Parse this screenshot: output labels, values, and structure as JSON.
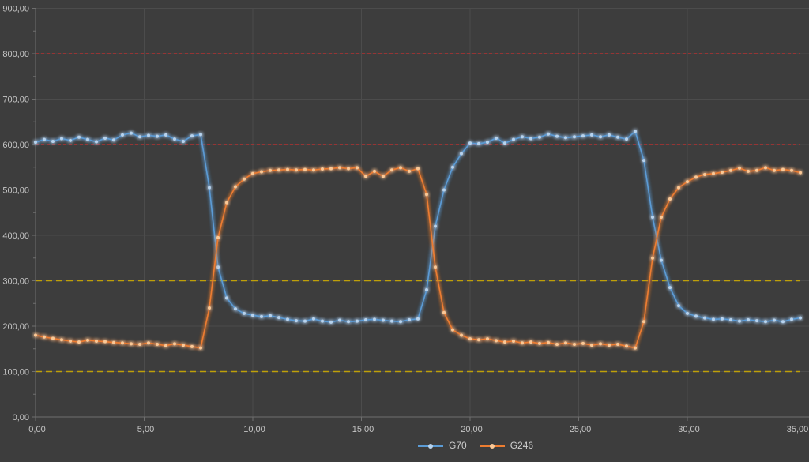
{
  "chart_data": {
    "type": "line",
    "title": "",
    "background_color": "#3d3d3d",
    "grid_color": "#4c4c4c",
    "axis_color": "#6e6e6e",
    "text_color": "#c6c6c6",
    "grid": true,
    "legend_position": "bottom-center",
    "number_format": "comma-decimal",
    "x_axis": {
      "min": 0,
      "max": 35.6,
      "ticks": [
        {
          "value": 0,
          "label": "0,00"
        },
        {
          "value": 5,
          "label": "5,00"
        },
        {
          "value": 10,
          "label": "10,00"
        },
        {
          "value": 15,
          "label": "15,00"
        },
        {
          "value": 20,
          "label": "20,00"
        },
        {
          "value": 25,
          "label": "25,00"
        },
        {
          "value": 30,
          "label": "30,00"
        },
        {
          "value": 35,
          "label": "35,00"
        }
      ]
    },
    "y_axis": {
      "min": 0,
      "max": 900,
      "minor_tick_step": 50,
      "ticks": [
        {
          "value": 0,
          "label": "0,00"
        },
        {
          "value": 100,
          "label": "100,00"
        },
        {
          "value": 200,
          "label": "200,00"
        },
        {
          "value": 300,
          "label": "300,00"
        },
        {
          "value": 400,
          "label": "400,00"
        },
        {
          "value": 500,
          "label": "500,00"
        },
        {
          "value": 600,
          "label": "600,00"
        },
        {
          "value": 700,
          "label": "700,00"
        },
        {
          "value": 800,
          "label": "800,00"
        },
        {
          "value": 900,
          "label": "900,00"
        }
      ]
    },
    "reference_lines": [
      {
        "y": 800,
        "color": "#cc2f2f",
        "dash": "4 3",
        "width": 1.3
      },
      {
        "y": 600,
        "color": "#cc2f2f",
        "dash": "4 3",
        "width": 1.3
      },
      {
        "y": 300,
        "color": "#bfa009",
        "dash": "8 5",
        "width": 1.5
      },
      {
        "y": 100,
        "color": "#bfa009",
        "dash": "8 5",
        "width": 1.5
      }
    ],
    "x_start": 0,
    "x_step": 0.4,
    "series": [
      {
        "name": "G70",
        "color": "#5b9bd5",
        "marker_color": "#b7d3ee",
        "values": [
          605,
          611,
          607,
          613,
          609,
          616,
          611,
          606,
          614,
          610,
          621,
          625,
          617,
          620,
          618,
          621,
          612,
          607,
          619,
          622,
          505,
          330,
          262,
          238,
          228,
          224,
          221,
          223,
          219,
          215,
          212,
          211,
          216,
          211,
          209,
          213,
          210,
          211,
          214,
          215,
          213,
          211,
          210,
          214,
          216,
          280,
          420,
          500,
          550,
          580,
          603,
          602,
          605,
          614,
          603,
          611,
          617,
          613,
          616,
          623,
          618,
          615,
          617,
          619,
          621,
          617,
          621,
          616,
          612,
          629,
          565,
          440,
          345,
          285,
          245,
          228,
          222,
          218,
          215,
          216,
          214,
          211,
          214,
          212,
          210,
          213,
          210,
          215,
          218
        ]
      },
      {
        "name": "G246",
        "color": "#ed7d31",
        "marker_color": "#fbc896",
        "values": [
          180,
          176,
          173,
          170,
          167,
          165,
          169,
          167,
          166,
          164,
          163,
          161,
          160,
          163,
          160,
          157,
          161,
          158,
          155,
          152,
          240,
          395,
          472,
          507,
          524,
          536,
          540,
          543,
          544,
          545,
          544,
          545,
          544,
          546,
          547,
          549,
          547,
          549,
          530,
          541,
          530,
          544,
          549,
          541,
          547,
          490,
          330,
          230,
          192,
          180,
          172,
          170,
          172,
          168,
          165,
          167,
          163,
          165,
          162,
          164,
          160,
          163,
          160,
          162,
          158,
          161,
          158,
          160,
          156,
          152,
          210,
          350,
          440,
          480,
          505,
          518,
          528,
          534,
          536,
          539,
          543,
          548,
          541,
          543,
          549,
          543,
          545,
          543,
          538
        ]
      }
    ]
  },
  "legend": {
    "items": [
      {
        "label": "G70"
      },
      {
        "label": "G246"
      }
    ]
  }
}
